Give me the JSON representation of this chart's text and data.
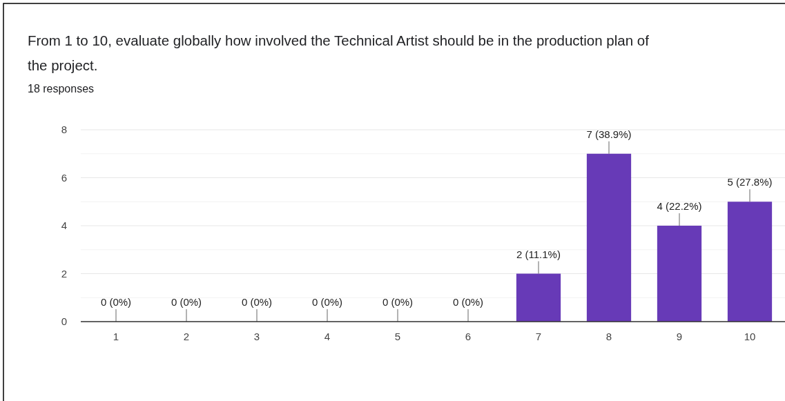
{
  "chart_data": {
    "type": "bar",
    "title": "From 1 to 10, evaluate globally how involved the Technical Artist should be in the production plan of the project.",
    "subtitle": "18 responses",
    "categories": [
      "1",
      "2",
      "3",
      "4",
      "5",
      "6",
      "7",
      "8",
      "9",
      "10"
    ],
    "values": [
      0,
      0,
      0,
      0,
      0,
      0,
      2,
      7,
      4,
      5
    ],
    "value_labels": [
      "0 (0%)",
      "0 (0%)",
      "0 (0%)",
      "0 (0%)",
      "0 (0%)",
      "0 (0%)",
      "2 (11.1%)",
      "7 (38.9%)",
      "4 (22.2%)",
      "5 (27.8%)"
    ],
    "color": "#673ab7",
    "ylim": [
      0,
      8
    ],
    "yticks": [
      0,
      {
        "value": 1,
        "label": null
      },
      2,
      {
        "value": 3,
        "label": null
      },
      4,
      {
        "value": 5,
        "label": null
      },
      6,
      {
        "value": 7,
        "label": null
      },
      8
    ],
    "grid": "y"
  }
}
